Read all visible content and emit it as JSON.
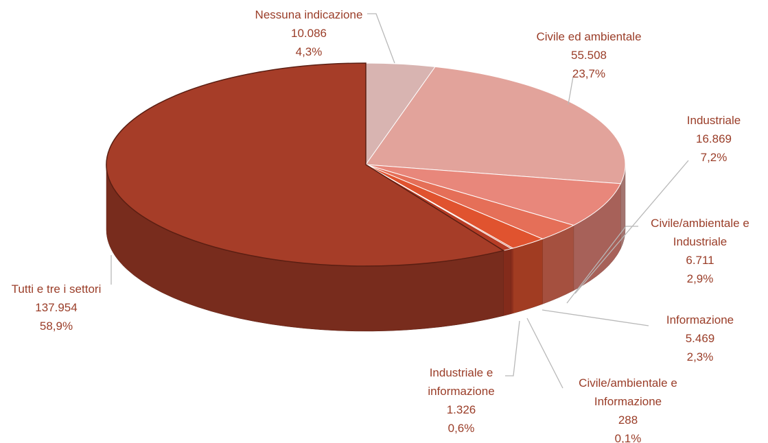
{
  "chart_data": {
    "type": "pie3d",
    "categories": [
      "Nessuna indicazione",
      "Civile ed ambientale",
      "Industriale",
      "Civile/ambientale e Industriale",
      "Informazione",
      "Civile/ambientale e Informazione",
      "Industriale e informazione",
      "Tutti e tre i settori"
    ],
    "values": [
      10086,
      55508,
      16869,
      6711,
      5469,
      288,
      1326,
      137954
    ],
    "value_labels": [
      "10.086",
      "55.508",
      "16.869",
      "6.711",
      "5.469",
      "288",
      "1.326",
      "137.954"
    ],
    "percents": [
      4.3,
      23.7,
      7.2,
      2.9,
      2.3,
      0.1,
      0.6,
      58.9
    ],
    "percent_labels": [
      "4,3%",
      "23,7%",
      "7,2%",
      "2,9%",
      "2,3%",
      "0,1%",
      "0,6%",
      "58,9%"
    ],
    "colors": [
      "#d8b4b1",
      "#e2a39b",
      "#e8877b",
      "#e56f58",
      "#e0532f",
      "#c9442a",
      "#b63c25",
      "#a63d28"
    ]
  }
}
